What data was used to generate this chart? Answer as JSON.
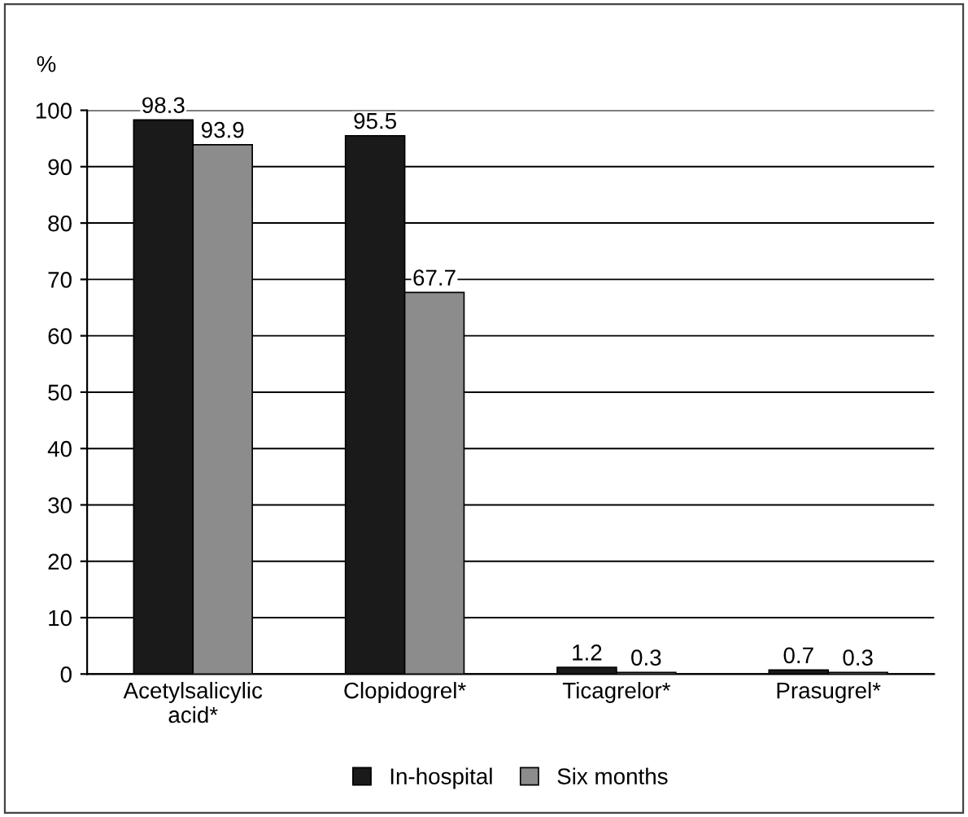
{
  "chart_data": {
    "type": "bar",
    "ylabel": "%",
    "categories": [
      "Acetylsalicylic\nacid*",
      "Clopidogrel*",
      "Ticagrelor*",
      "Prasugrel*"
    ],
    "series": [
      {
        "name": "In-hospital",
        "color": "#1a1a1a",
        "values": [
          98.3,
          95.5,
          1.2,
          0.7
        ]
      },
      {
        "name": "Six months",
        "color": "#8c8c8c",
        "values": [
          93.9,
          67.7,
          0.3,
          0.3
        ]
      }
    ],
    "ylim": [
      0,
      100
    ],
    "yticks": [
      0,
      10,
      20,
      30,
      40,
      50,
      60,
      70,
      80,
      90,
      100
    ],
    "grid": "y",
    "legend": "bottom",
    "data_labels": true
  }
}
